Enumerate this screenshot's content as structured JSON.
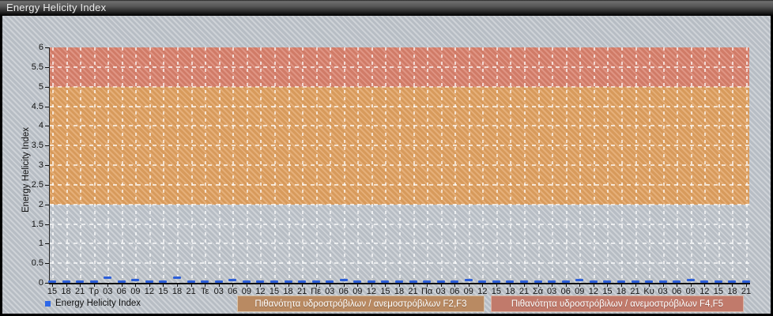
{
  "window": {
    "title": "Energy Helicity Index"
  },
  "colors": {
    "band_f23": "#e0a05f",
    "band_f45": "#d9806b",
    "zone_label_f23_bg": "#b98a62",
    "zone_label_f45_bg": "#c17a6b",
    "series_line": "#2c5ed8",
    "legend_swatch": "#2e68e8"
  },
  "legend": {
    "series_label": "Energy Helicity Index"
  },
  "zone_labels": {
    "f23": "Πιθανότητα υδροστρόβιλων / ανεμοστρόβιλων F2,F3",
    "f45": "Πιθανότητα υδροστρόβιλων / ανεμοστρόβιλων F4,F5"
  },
  "chart_data": {
    "type": "line",
    "title": "Energy Helicity Index",
    "xlabel": "",
    "ylabel": "Energy Helicity Index",
    "ylim": [
      0,
      6
    ],
    "y_ticks": [
      0,
      0.5,
      1,
      1.5,
      2,
      2.5,
      3,
      3.5,
      4,
      4.5,
      5,
      5.5,
      6
    ],
    "grid": "dashed-white",
    "legend_position": "bottom-left",
    "x": [
      "15",
      "18",
      "21",
      "Τρ",
      "03",
      "06",
      "09",
      "12",
      "15",
      "18",
      "21",
      "Τε",
      "03",
      "06",
      "09",
      "12",
      "15",
      "18",
      "21",
      "Πέ",
      "03",
      "06",
      "09",
      "12",
      "15",
      "18",
      "21",
      "Πα",
      "03",
      "06",
      "09",
      "12",
      "15",
      "18",
      "21",
      "Σά",
      "03",
      "06",
      "09",
      "12",
      "15",
      "18",
      "21",
      "Κυ",
      "03",
      "06",
      "09",
      "12",
      "15",
      "18",
      "21"
    ],
    "series": [
      {
        "name": "Energy Helicity Index",
        "values": [
          0,
          0,
          0,
          0,
          0.1,
          0,
          0.05,
          0,
          0,
          0.1,
          0,
          0,
          0,
          0.05,
          0,
          0,
          0,
          0,
          0,
          0,
          0,
          0.05,
          0,
          0,
          0,
          0,
          0,
          0,
          0,
          0,
          0.05,
          0,
          0,
          0,
          0,
          0,
          0,
          0,
          0.05,
          0,
          0,
          0,
          0,
          0,
          0,
          0,
          0.05,
          0,
          0,
          0,
          0
        ]
      }
    ],
    "bands": [
      {
        "range": [
          2,
          5
        ],
        "meaning": "Πιθανότητα υδροστρόβιλων / ανεμοστρόβιλων F2,F3",
        "color_key": "band_f23"
      },
      {
        "range": [
          5,
          6
        ],
        "meaning": "Πιθανότητα υδροστρόβιλων / ανεμοστρόβιλων F4,F5",
        "color_key": "band_f45"
      }
    ]
  }
}
